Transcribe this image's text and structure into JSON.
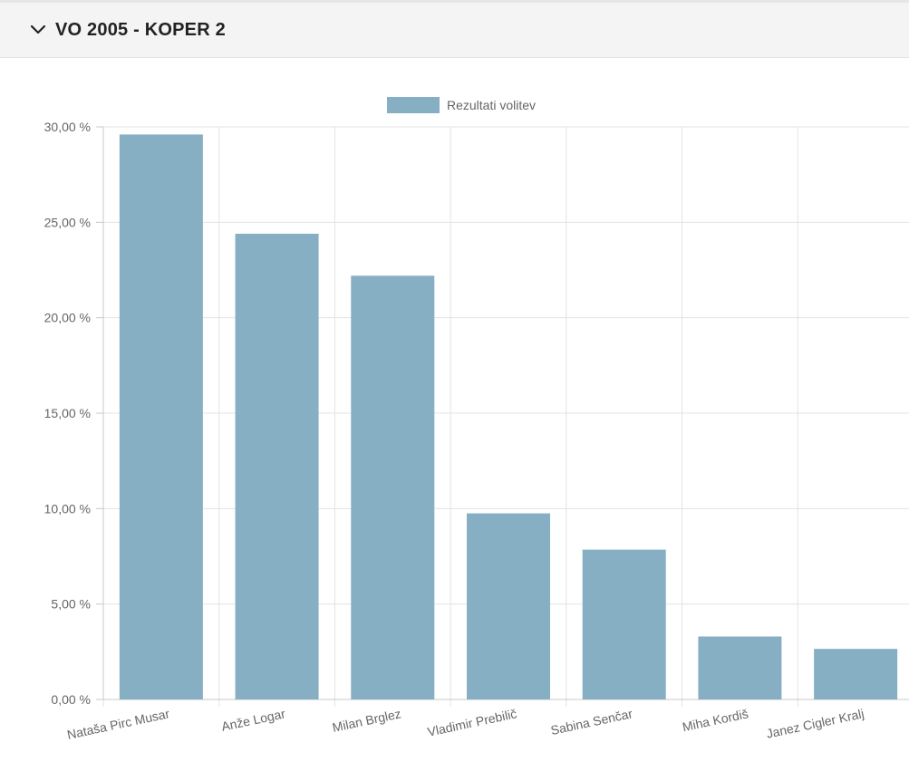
{
  "header": {
    "title": "VO 2005 - KOPER 2",
    "toggle_icon": "chevron-down-icon"
  },
  "chart_data": {
    "type": "bar",
    "legend": {
      "label": "Rezultati volitev",
      "position": "top"
    },
    "categories": [
      "Nataša Pirc Musar",
      "Anže Logar",
      "Milan Brglez",
      "Vladimir Prebilič",
      "Sabina Senčar",
      "Miha Kordiš",
      "Janez Cigler Kralj"
    ],
    "series": [
      {
        "name": "Rezultati volitev",
        "values": [
          29.6,
          24.4,
          22.2,
          9.75,
          7.85,
          3.3,
          2.65
        ]
      }
    ],
    "ylim": [
      0,
      30
    ],
    "yticks": [
      0,
      5,
      10,
      15,
      20,
      25,
      30
    ],
    "ytick_labels": [
      "0,00 %",
      "5,00 %",
      "10,00 %",
      "15,00 %",
      "20,00 %",
      "25,00 %",
      "30,00 %"
    ],
    "grid": true,
    "bar_color": "#86afc3"
  }
}
